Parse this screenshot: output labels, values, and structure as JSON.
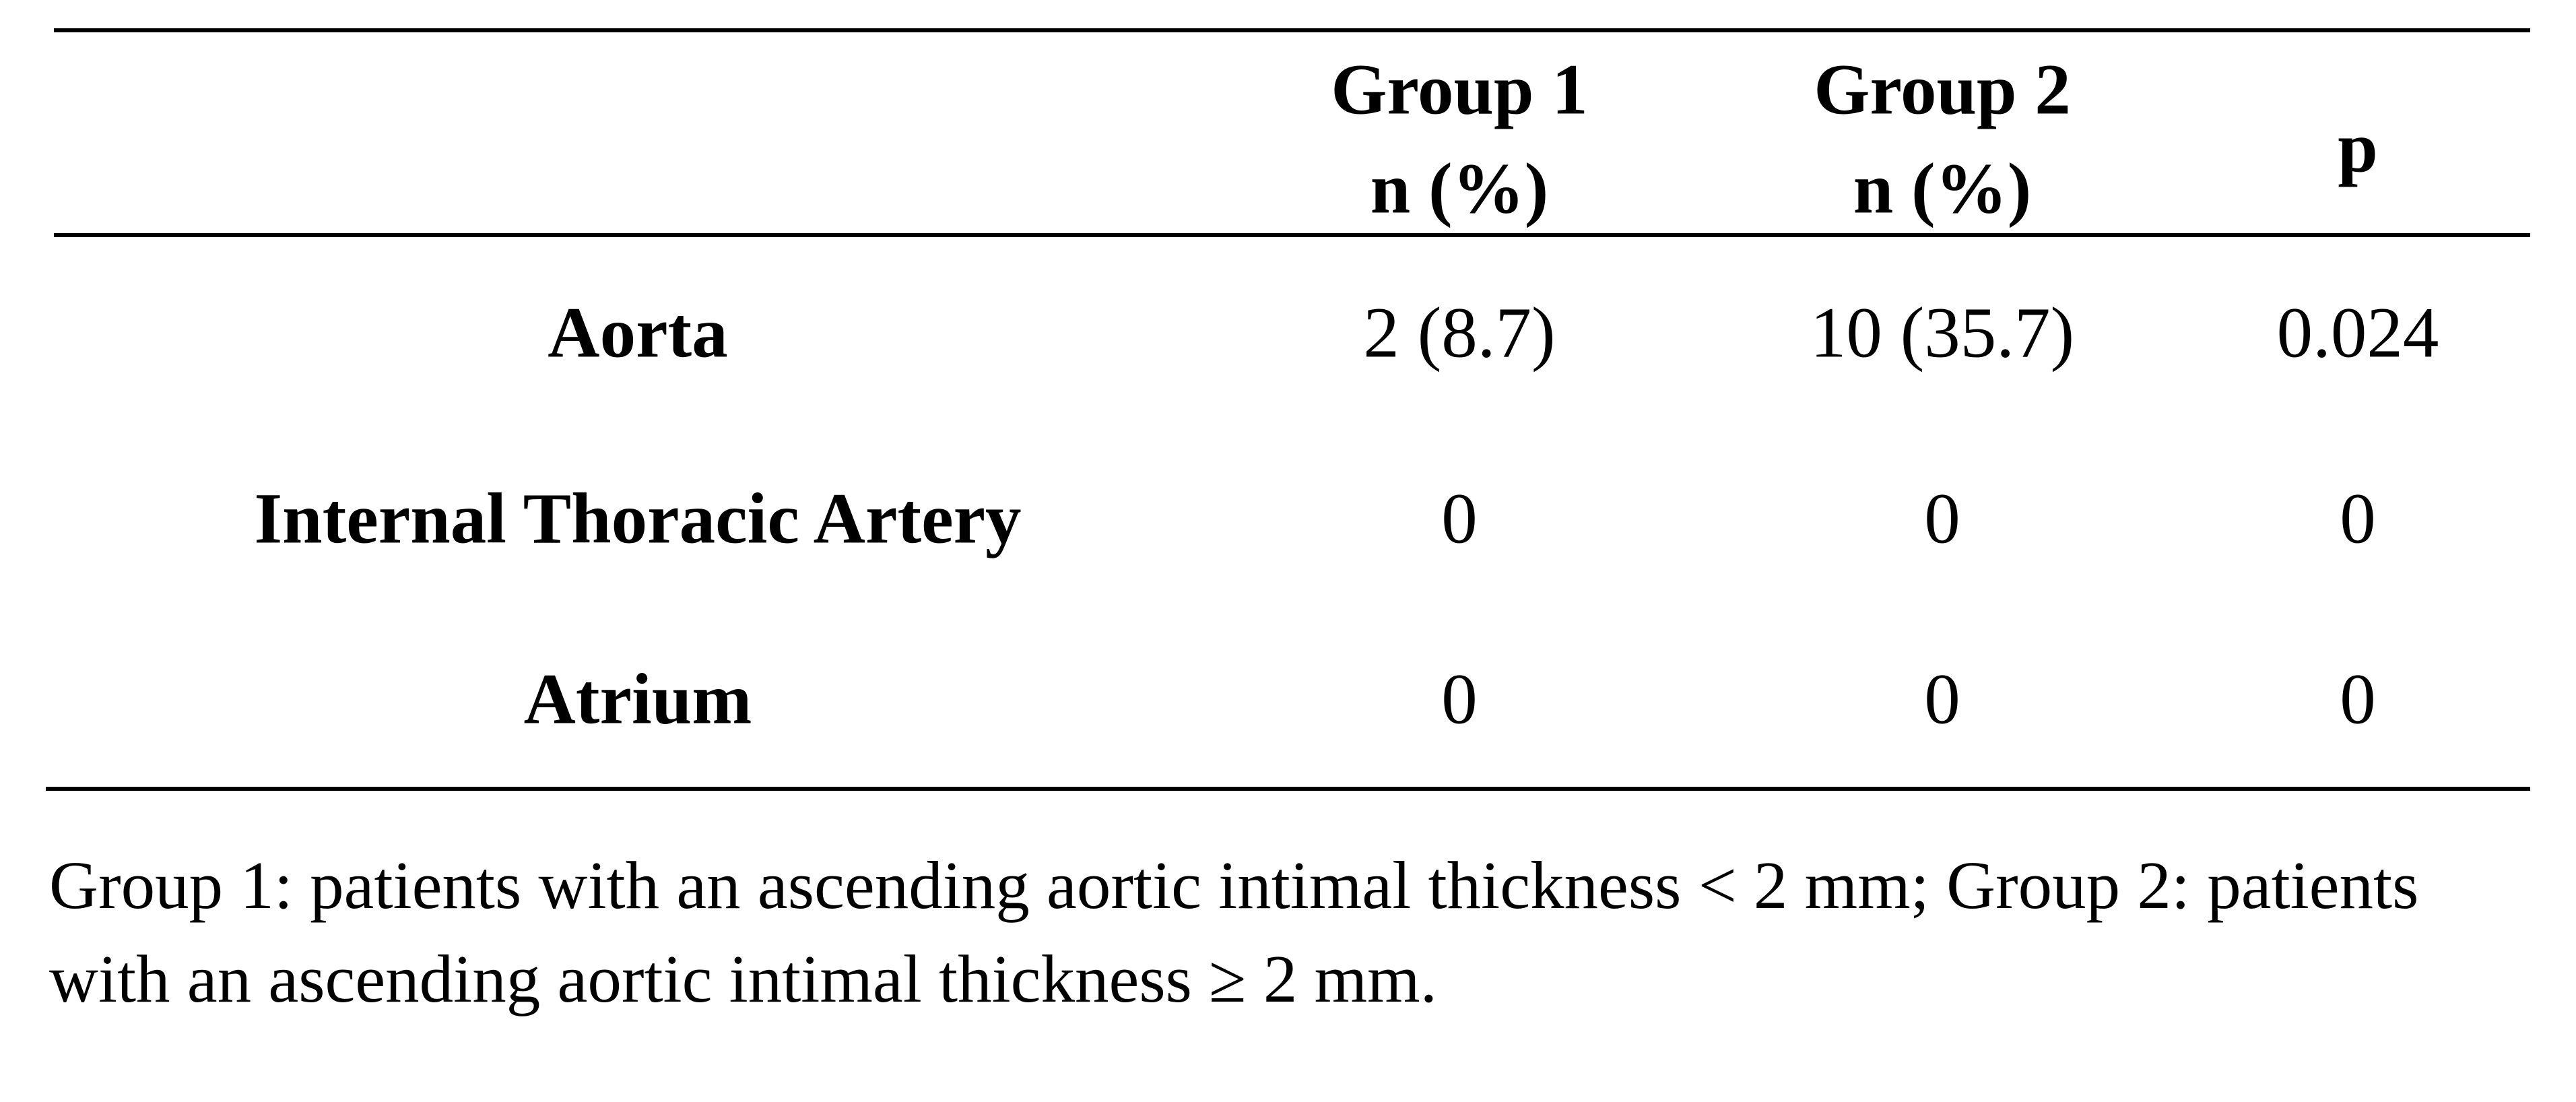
{
  "table": {
    "header": [
      [
        "Group 1",
        "n (%)"
      ],
      [
        "Group 2",
        "n (%)"
      ],
      [
        "p"
      ]
    ],
    "rows": [
      [
        "Aorta",
        "2 (8.7)",
        "10 (35.7)",
        "0.024"
      ],
      [
        "Internal Thoracic Artery",
        "0",
        "0",
        "0"
      ],
      [
        "Atrium",
        "0",
        "0",
        "0"
      ]
    ],
    "footnote": "Group 1: patients with an ascending aortic intimal thickness < 2 mm; Group 2: patients with an ascending aortic intimal thickness ≥ 2 mm."
  }
}
